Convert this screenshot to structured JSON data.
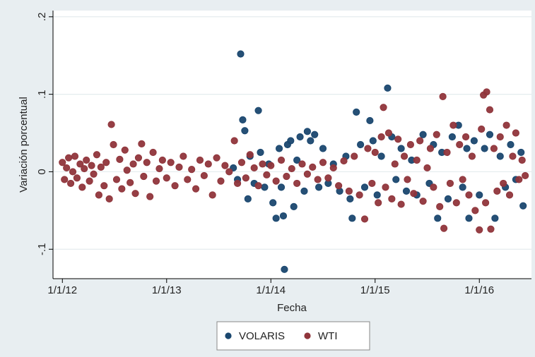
{
  "chart_data": {
    "type": "scatter",
    "xlabel": "Fecha",
    "ylabel": "Variación porcentual",
    "xlim": [
      2011.91,
      2016.5
    ],
    "ylim": [
      -0.138,
      0.208
    ],
    "xticks": [
      {
        "value": 2012,
        "label": "1/1/12"
      },
      {
        "value": 2013,
        "label": "1/1/13"
      },
      {
        "value": 2014,
        "label": "1/1/14"
      },
      {
        "value": 2015,
        "label": "1/1/15"
      },
      {
        "value": 2016,
        "label": "1/1/16"
      }
    ],
    "yticks": [
      {
        "value": -0.1,
        "label": "-.1"
      },
      0,
      {
        "value": 0.1,
        "label": ".1"
      },
      {
        "value": 0.2,
        "label": ".2"
      }
    ],
    "grid": true,
    "legend": "bottom",
    "series": [
      {
        "name": "VOLARIS",
        "color": "#1a476f",
        "x": [
          2013.64,
          2013.68,
          2013.71,
          2013.73,
          2013.75,
          2013.78,
          2013.8,
          2013.84,
          2013.88,
          2013.9,
          2013.94,
          2013.98,
          2014.02,
          2014.05,
          2014.08,
          2014.1,
          2014.12,
          2014.13,
          2014.16,
          2014.19,
          2014.22,
          2014.25,
          2014.28,
          2014.32,
          2014.35,
          2014.38,
          2014.42,
          2014.46,
          2014.5,
          2014.55,
          2014.6,
          2014.66,
          2014.72,
          2014.76,
          2014.78,
          2014.82,
          2014.86,
          2014.9,
          2014.95,
          2014.98,
          2015.02,
          2015.06,
          2015.12,
          2015.16,
          2015.2,
          2015.25,
          2015.3,
          2015.35,
          2015.4,
          2015.46,
          2015.52,
          2015.56,
          2015.6,
          2015.64,
          2015.7,
          2015.74,
          2015.8,
          2015.84,
          2015.88,
          2015.9,
          2015.95,
          2016.0,
          2016.05,
          2016.1,
          2016.15,
          2016.2,
          2016.25,
          2016.3,
          2016.35,
          2016.4,
          2016.42
        ],
        "values": [
          0.005,
          -0.01,
          0.152,
          0.067,
          0.053,
          -0.035,
          0.02,
          -0.015,
          0.079,
          0.025,
          -0.02,
          0.01,
          -0.04,
          -0.06,
          0.03,
          -0.02,
          -0.057,
          -0.126,
          0.035,
          0.04,
          -0.045,
          0.015,
          0.045,
          -0.025,
          0.052,
          0.04,
          0.048,
          -0.02,
          0.03,
          -0.015,
          0.01,
          -0.025,
          0.02,
          -0.035,
          -0.06,
          0.077,
          0.035,
          -0.02,
          0.066,
          0.04,
          -0.03,
          0.02,
          0.108,
          0.045,
          -0.01,
          0.03,
          -0.025,
          0.015,
          -0.03,
          0.048,
          -0.015,
          0.035,
          -0.06,
          0.025,
          -0.035,
          0.045,
          0.06,
          -0.02,
          0.03,
          -0.06,
          0.04,
          -0.03,
          0.03,
          0.048,
          -0.06,
          0.02,
          -0.02,
          0.035,
          -0.01,
          0.025,
          -0.044
        ]
      },
      {
        "name": "WTI",
        "color": "#90353b",
        "x": [
          2012.0,
          2012.02,
          2012.04,
          2012.06,
          2012.08,
          2012.1,
          2012.12,
          2012.14,
          2012.17,
          2012.19,
          2012.21,
          2012.23,
          2012.26,
          2012.28,
          2012.3,
          2012.33,
          2012.35,
          2012.37,
          2012.4,
          2012.42,
          2012.45,
          2012.47,
          2012.49,
          2012.52,
          2012.55,
          2012.57,
          2012.6,
          2012.62,
          2012.65,
          2012.68,
          2012.7,
          2012.73,
          2012.76,
          2012.78,
          2012.81,
          2012.84,
          2012.87,
          2012.9,
          2012.93,
          2012.96,
          2013.0,
          2013.04,
          2013.08,
          2013.12,
          2013.16,
          2013.2,
          2013.24,
          2013.28,
          2013.32,
          2013.36,
          2013.4,
          2013.44,
          2013.48,
          2013.52,
          2013.56,
          2013.6,
          2013.65,
          2013.68,
          2013.72,
          2013.76,
          2013.8,
          2013.84,
          2013.88,
          2013.92,
          2013.96,
          2014.0,
          2014.05,
          2014.1,
          2014.15,
          2014.2,
          2014.25,
          2014.3,
          2014.35,
          2014.4,
          2014.45,
          2014.5,
          2014.55,
          2014.6,
          2014.65,
          2014.7,
          2014.75,
          2014.8,
          2014.85,
          2014.9,
          2014.93,
          2014.97,
          2015.0,
          2015.03,
          2015.06,
          2015.08,
          2015.1,
          2015.13,
          2015.16,
          2015.19,
          2015.22,
          2015.25,
          2015.28,
          2015.31,
          2015.34,
          2015.37,
          2015.4,
          2015.43,
          2015.46,
          2015.5,
          2015.53,
          2015.56,
          2015.59,
          2015.62,
          2015.65,
          2015.66,
          2015.69,
          2015.72,
          2015.75,
          2015.78,
          2015.81,
          2015.84,
          2015.87,
          2015.9,
          2015.93,
          2015.96,
          2016.0,
          2016.02,
          2016.04,
          2016.06,
          2016.07,
          2016.1,
          2016.11,
          2016.14,
          2016.17,
          2016.2,
          2016.23,
          2016.26,
          2016.29,
          2016.32,
          2016.35,
          2016.38,
          2016.41,
          2016.44
        ],
        "values": [
          0.012,
          -0.01,
          0.005,
          0.018,
          -0.015,
          0.0,
          0.02,
          -0.008,
          0.01,
          -0.02,
          0.004,
          0.015,
          -0.012,
          0.008,
          -0.003,
          0.022,
          -0.03,
          0.006,
          -0.018,
          0.012,
          -0.035,
          0.061,
          0.035,
          -0.01,
          0.016,
          -0.022,
          0.028,
          0.002,
          -0.014,
          0.01,
          -0.028,
          0.018,
          0.036,
          -0.006,
          0.012,
          -0.032,
          0.025,
          -0.012,
          0.004,
          0.015,
          -0.008,
          0.012,
          -0.018,
          0.006,
          0.02,
          -0.01,
          0.003,
          -0.022,
          0.015,
          -0.005,
          0.01,
          -0.03,
          0.018,
          -0.012,
          0.008,
          0.0,
          0.04,
          -0.015,
          0.012,
          -0.008,
          0.022,
          0.005,
          -0.018,
          0.01,
          -0.004,
          0.008,
          -0.012,
          0.015,
          -0.006,
          0.004,
          -0.015,
          0.01,
          -0.003,
          0.006,
          -0.01,
          0.012,
          -0.008,
          0.005,
          -0.018,
          0.014,
          -0.025,
          0.02,
          -0.03,
          -0.061,
          0.03,
          -0.015,
          0.025,
          -0.04,
          0.045,
          0.083,
          -0.02,
          0.05,
          -0.035,
          0.01,
          0.042,
          -0.042,
          0.02,
          -0.01,
          0.035,
          -0.028,
          0.015,
          0.04,
          -0.038,
          0.005,
          0.03,
          -0.02,
          0.048,
          -0.045,
          0.097,
          -0.073,
          0.025,
          -0.015,
          0.06,
          -0.04,
          0.035,
          -0.01,
          0.045,
          -0.03,
          0.02,
          -0.05,
          -0.075,
          0.055,
          0.099,
          -0.04,
          0.103,
          0.08,
          -0.074,
          0.03,
          -0.025,
          0.045,
          -0.015,
          0.06,
          -0.03,
          0.02,
          0.05,
          -0.01,
          0.015,
          -0.005
        ]
      }
    ]
  }
}
